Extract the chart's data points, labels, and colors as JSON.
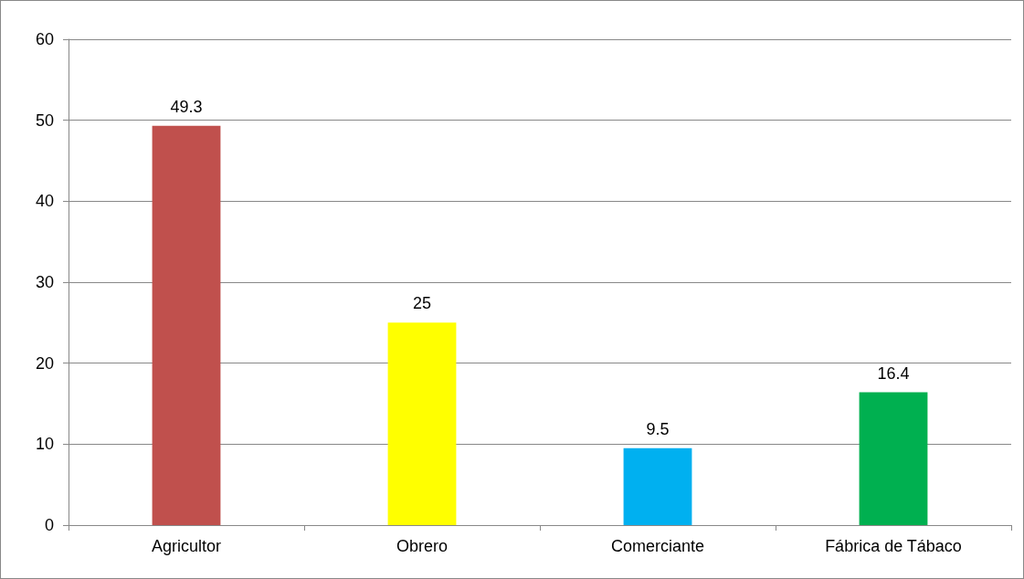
{
  "chart_data": {
    "type": "bar",
    "categories": [
      "Agricultor",
      "Obrero",
      "Comerciante",
      "Fábrica de Tábaco"
    ],
    "values": [
      49.3,
      25,
      9.5,
      16.4
    ],
    "colors": [
      "#c0504d",
      "#ffff00",
      "#00b0f0",
      "#00b050"
    ],
    "ylim": [
      0,
      60
    ],
    "yticks": [
      0,
      10,
      20,
      30,
      40,
      50,
      60
    ],
    "grid": "y",
    "data_labels": true
  }
}
